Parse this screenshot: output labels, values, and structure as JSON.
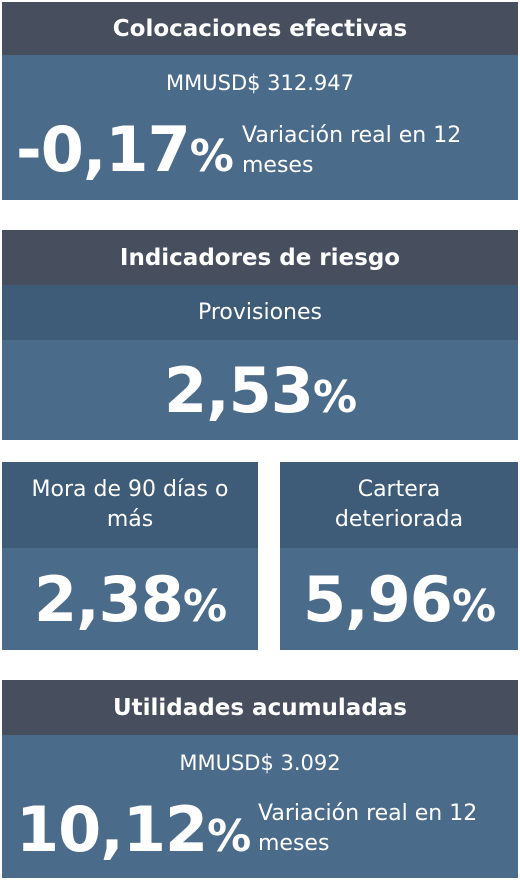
{
  "colocaciones": {
    "title": "Colocaciones efectivas",
    "amount": "MMUSD$ 312.947",
    "value": "-0,17",
    "unit": "%",
    "description": "Variación real en 12 meses"
  },
  "riesgo": {
    "title": "Indicadores de riesgo",
    "provisiones": {
      "label": "Provisiones",
      "value": "2,53",
      "unit": "%"
    },
    "mora": {
      "label": "Mora de 90 días o más",
      "value": "2,38",
      "unit": "%"
    },
    "cartera": {
      "label": "Cartera deteriorada",
      "value": "5,96",
      "unit": "%"
    }
  },
  "utilidades": {
    "title": "Utilidades acumuladas",
    "amount": "MMUSD$ 3.092",
    "value": "10,12",
    "unit": "%",
    "description": "Variación real en 12 meses"
  }
}
